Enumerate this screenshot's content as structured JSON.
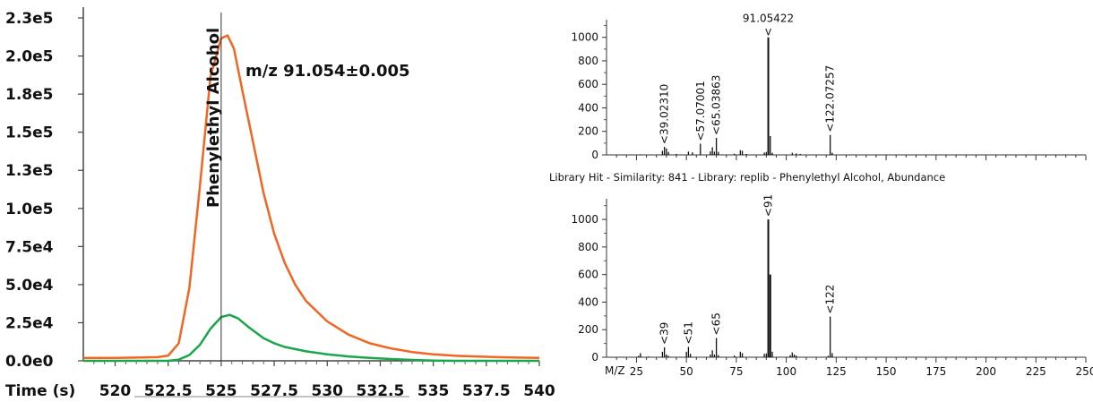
{
  "chart_data": [
    {
      "type": "line",
      "xlabel": "Time (s)",
      "x_ticks": [
        "520",
        "522.5",
        "525",
        "527.5",
        "530",
        "532.5",
        "535",
        "537.5",
        "540"
      ],
      "y_ticks": [
        "0.0e0",
        "2.5e4",
        "5.0e4",
        "7.5e4",
        "1.0e5",
        "1.3e5",
        "1.5e5",
        "1.8e5",
        "2.0e5",
        "2.3e5"
      ],
      "xlim": [
        518.5,
        540
      ],
      "ylim": [
        0,
        235000
      ],
      "annotation": "m/z 91.054±0.005",
      "marker": {
        "label": "Phenylethyl Alcohol",
        "x": 525
      },
      "series": [
        {
          "color": "#f26522",
          "points": [
            [
              518.5,
              2000
            ],
            [
              520,
              2000
            ],
            [
              521,
              2200
            ],
            [
              522,
              2500
            ],
            [
              522.5,
              3500
            ],
            [
              523,
              12000
            ],
            [
              523.5,
              50000
            ],
            [
              524,
              120000
            ],
            [
              524.5,
              195000
            ],
            [
              525,
              221000
            ],
            [
              525.3,
              223000
            ],
            [
              525.6,
              214000
            ],
            [
              526,
              185000
            ],
            [
              526.5,
              150000
            ],
            [
              527,
              115000
            ],
            [
              527.5,
              87000
            ],
            [
              528,
              67000
            ],
            [
              528.5,
              52000
            ],
            [
              529,
              41000
            ],
            [
              530,
              27000
            ],
            [
              531,
              18000
            ],
            [
              532,
              12000
            ],
            [
              533,
              8500
            ],
            [
              534,
              6000
            ],
            [
              535,
              4500
            ],
            [
              536,
              3500
            ],
            [
              537,
              3000
            ],
            [
              538,
              2500
            ],
            [
              539,
              2200
            ],
            [
              540,
              2000
            ]
          ]
        },
        {
          "color": "#1aa64a",
          "points": [
            [
              518.5,
              0
            ],
            [
              522.5,
              0
            ],
            [
              523,
              800
            ],
            [
              523.5,
              4000
            ],
            [
              524,
              11000
            ],
            [
              524.5,
              22000
            ],
            [
              525,
              30000
            ],
            [
              525.4,
              31500
            ],
            [
              525.8,
              29000
            ],
            [
              526.3,
              23000
            ],
            [
              527,
              15500
            ],
            [
              527.5,
              12000
            ],
            [
              528,
              9500
            ],
            [
              529,
              6500
            ],
            [
              530,
              4500
            ],
            [
              531,
              3000
            ],
            [
              532,
              2000
            ],
            [
              533,
              1200
            ],
            [
              534,
              600
            ],
            [
              535,
              200
            ],
            [
              536,
              0
            ],
            [
              540,
              0
            ]
          ]
        }
      ]
    },
    {
      "type": "bar",
      "title": "",
      "ylim": [
        0,
        1150
      ],
      "xlim": [
        10,
        250
      ],
      "y_ticks": [
        "0",
        "200",
        "400",
        "600",
        "800",
        "1000"
      ],
      "peaks": [
        [
          27,
          5
        ],
        [
          38,
          35
        ],
        [
          39,
          68
        ],
        [
          40,
          55
        ],
        [
          41,
          25
        ],
        [
          45,
          8
        ],
        [
          51,
          28
        ],
        [
          53,
          22
        ],
        [
          57,
          95
        ],
        [
          62,
          30
        ],
        [
          63,
          65
        ],
        [
          64,
          28
        ],
        [
          65,
          145
        ],
        [
          66,
          25
        ],
        [
          74,
          10
        ],
        [
          77,
          40
        ],
        [
          78,
          35
        ],
        [
          80,
          8
        ],
        [
          89,
          20
        ],
        [
          90,
          25
        ],
        [
          91,
          1000
        ],
        [
          92,
          160
        ],
        [
          93,
          18
        ],
        [
          103,
          18
        ],
        [
          105,
          12
        ],
        [
          107,
          8
        ],
        [
          122,
          170
        ],
        [
          123,
          18
        ]
      ],
      "labels": [
        {
          "mz": 39,
          "text": "39.02310"
        },
        {
          "mz": 57,
          "text": "57.07001"
        },
        {
          "mz": 65,
          "text": "65.03863"
        },
        {
          "mz": 122,
          "text": "122.07257"
        }
      ],
      "top_label": {
        "mz": 91,
        "text": "91.05422"
      }
    },
    {
      "type": "bar",
      "title": "Library Hit - Similarity: 841 - Library: replib - Phenylethyl Alcohol, Abundance",
      "xlabel": "M/Z",
      "ylim": [
        0,
        1150
      ],
      "xlim": [
        10,
        250
      ],
      "x_ticks": [
        "25",
        "50",
        "75",
        "100",
        "125",
        "150",
        "175",
        "200",
        "225",
        "250"
      ],
      "y_ticks": [
        "0",
        "200",
        "400",
        "600",
        "800",
        "1000"
      ],
      "peaks": [
        [
          26,
          10
        ],
        [
          27,
          30
        ],
        [
          31,
          5
        ],
        [
          38,
          40
        ],
        [
          39,
          72
        ],
        [
          40,
          20
        ],
        [
          41,
          10
        ],
        [
          50,
          40
        ],
        [
          51,
          75
        ],
        [
          52,
          25
        ],
        [
          62,
          20
        ],
        [
          63,
          50
        ],
        [
          64,
          20
        ],
        [
          65,
          140
        ],
        [
          66,
          15
        ],
        [
          74,
          12
        ],
        [
          77,
          40
        ],
        [
          78,
          30
        ],
        [
          89,
          25
        ],
        [
          90,
          28
        ],
        [
          91,
          1000
        ],
        [
          92,
          600
        ],
        [
          93,
          40
        ],
        [
          102,
          15
        ],
        [
          103,
          35
        ],
        [
          104,
          20
        ],
        [
          105,
          12
        ],
        [
          121,
          10
        ],
        [
          122,
          295
        ],
        [
          123,
          30
        ]
      ],
      "labels": [
        {
          "mz": 39,
          "text": "39"
        },
        {
          "mz": 51,
          "text": "51"
        },
        {
          "mz": 65,
          "text": "65"
        },
        {
          "mz": 91,
          "text": "91"
        },
        {
          "mz": 122,
          "text": "122"
        }
      ]
    }
  ]
}
